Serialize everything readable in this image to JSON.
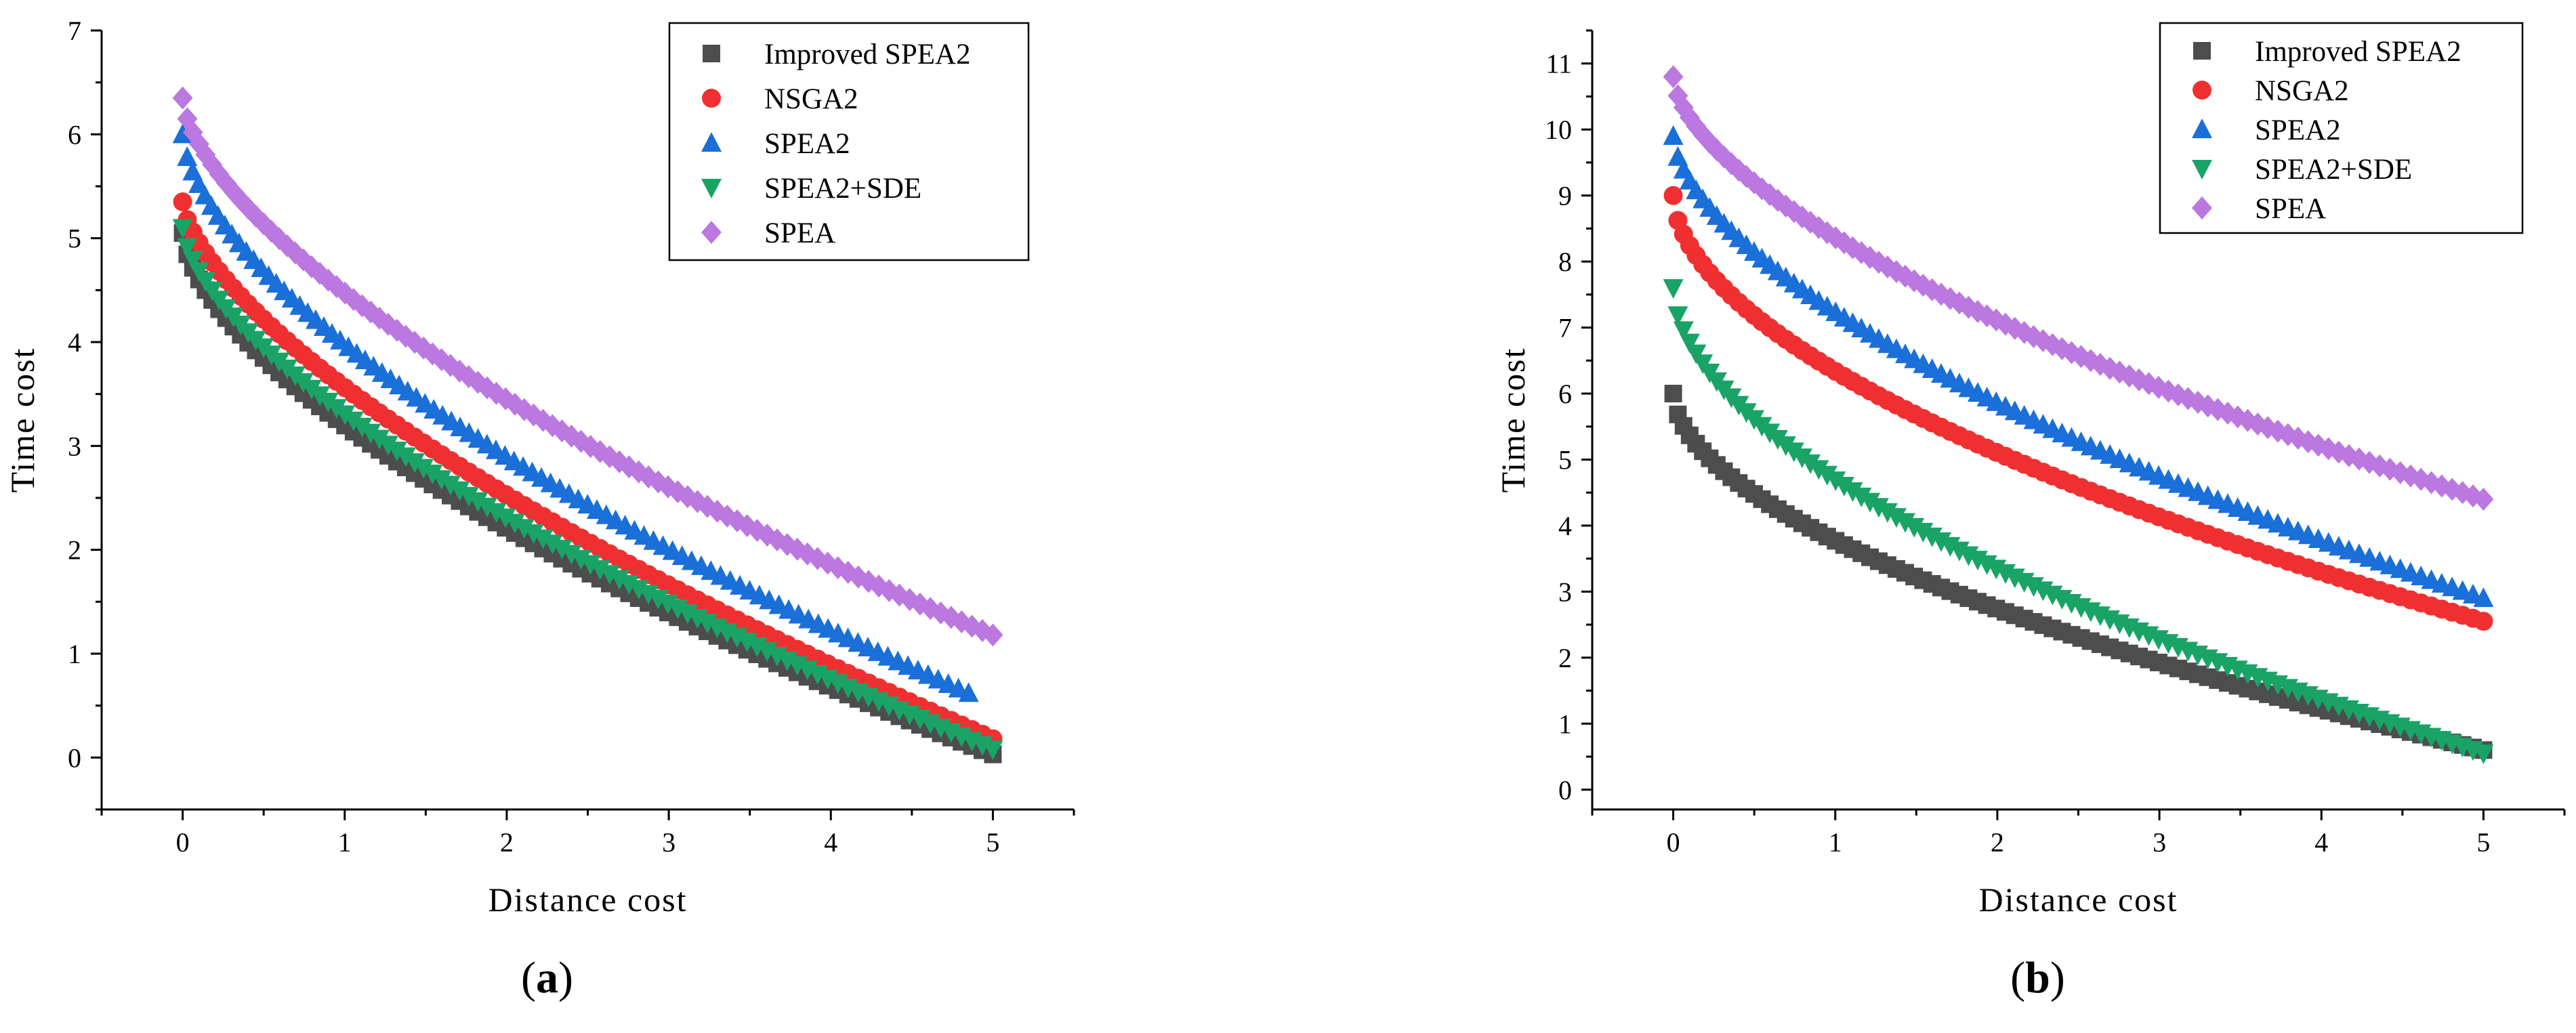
{
  "chart_data": [
    {
      "type": "scatter",
      "panel_label": "a",
      "title": "",
      "xlabel": "Distance cost",
      "ylabel": "Time cost",
      "xlim": [
        -0.5,
        5.5
      ],
      "ylim": [
        -0.5,
        7
      ],
      "xticks": [
        0,
        1,
        2,
        3,
        4,
        5
      ],
      "yticks": [
        0,
        1,
        2,
        3,
        4,
        5,
        6,
        7
      ],
      "grid": false,
      "legend_position": "top-right",
      "n_points": 90,
      "series": [
        {
          "name": "Improved SPEA2",
          "color": "#4d4d4d",
          "marker": "square",
          "x_range": [
            0,
            5
          ],
          "y0": 5.05,
          "y1": 0.03,
          "power": 0.62,
          "curve": 1.25
        },
        {
          "name": "NSGA2",
          "color": "#f03030",
          "marker": "circle",
          "x_range": [
            0,
            5
          ],
          "y0": 5.35,
          "y1": 0.18,
          "power": 0.66,
          "curve": 1.1
        },
        {
          "name": "SPEA2",
          "color": "#1a6fd9",
          "marker": "triangle-up",
          "x_range": [
            0,
            4.85
          ],
          "y0": 6.0,
          "y1": 0.62,
          "power": 0.62,
          "curve": 0.4
        },
        {
          "name": "SPEA2+SDE",
          "color": "#1aa367",
          "marker": "triangle-down",
          "x_range": [
            0,
            5
          ],
          "y0": 5.1,
          "y1": 0.08,
          "power": 0.64,
          "curve": 1.1
        },
        {
          "name": "SPEA",
          "color": "#bb78e0",
          "marker": "diamond",
          "x_range": [
            0,
            5
          ],
          "y0": 6.35,
          "y1": 1.18,
          "power": 0.63,
          "curve": 0.35
        }
      ]
    },
    {
      "type": "scatter",
      "panel_label": "b",
      "title": "",
      "xlabel": "Distance cost",
      "ylabel": "Time cost",
      "xlim": [
        -0.5,
        5.5
      ],
      "ylim": [
        -0.3,
        11.5
      ],
      "xticks": [
        0,
        1,
        2,
        3,
        4,
        5
      ],
      "yticks": [
        0,
        1,
        2,
        3,
        4,
        5,
        6,
        7,
        8,
        9,
        10,
        11
      ],
      "grid": false,
      "legend_position": "top-right",
      "n_points": 90,
      "series": [
        {
          "name": "Improved SPEA2",
          "color": "#4d4d4d",
          "marker": "square",
          "x_range": [
            0,
            5
          ],
          "y0": 6.0,
          "y1": 0.6,
          "power": 0.55,
          "curve": 1.8
        },
        {
          "name": "NSGA2",
          "color": "#f03030",
          "marker": "circle",
          "x_range": [
            0,
            5
          ],
          "y0": 9.0,
          "y1": 2.55,
          "power": 0.55,
          "curve": 1.1
        },
        {
          "name": "SPEA2",
          "color": "#1a6fd9",
          "marker": "triangle-up",
          "x_range": [
            0,
            5
          ],
          "y0": 9.9,
          "y1": 2.9,
          "power": 0.6,
          "curve": 0.9
        },
        {
          "name": "SPEA2+SDE",
          "color": "#1aa367",
          "marker": "triangle-down",
          "x_range": [
            0,
            5
          ],
          "y0": 7.6,
          "y1": 0.55,
          "power": 0.55,
          "curve": 1.4
        },
        {
          "name": "SPEA",
          "color": "#bb78e0",
          "marker": "diamond",
          "x_range": [
            0,
            5
          ],
          "y0": 10.8,
          "y1": 4.4,
          "power": 0.6,
          "curve": 0.6
        }
      ]
    }
  ]
}
